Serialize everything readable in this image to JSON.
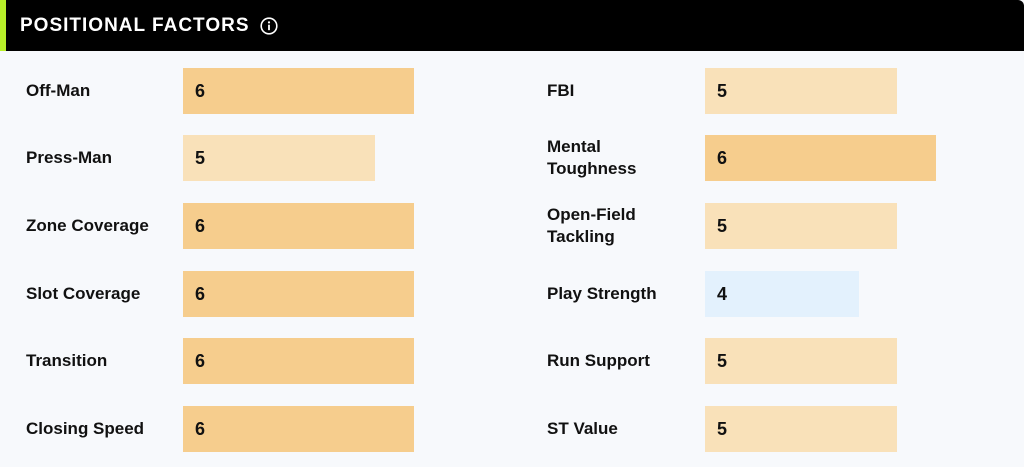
{
  "header": {
    "title": "POSITIONAL FACTORS",
    "info_icon": "info-icon"
  },
  "scale_max": 10,
  "colors": {
    "level_6": "#f6cd8d",
    "level_5": "#f9e1b9",
    "level_4": "#e3f1fd",
    "accent": "#b8f02a"
  },
  "left_factors": [
    {
      "label": "Off-Man",
      "value": "6"
    },
    {
      "label": "Press-Man",
      "value": "5"
    },
    {
      "label": "Zone Coverage",
      "value": "6"
    },
    {
      "label": "Slot Coverage",
      "value": "6"
    },
    {
      "label": "Transition",
      "value": "6"
    },
    {
      "label": "Closing Speed",
      "value": "6"
    }
  ],
  "right_factors": [
    {
      "label": "FBI",
      "value": "5"
    },
    {
      "label": "Mental Toughness",
      "value": "6"
    },
    {
      "label": "Open-Field Tackling",
      "value": "5"
    },
    {
      "label": "Play Strength",
      "value": "4"
    },
    {
      "label": "Run Support",
      "value": "5"
    },
    {
      "label": "ST Value",
      "value": "5"
    }
  ]
}
